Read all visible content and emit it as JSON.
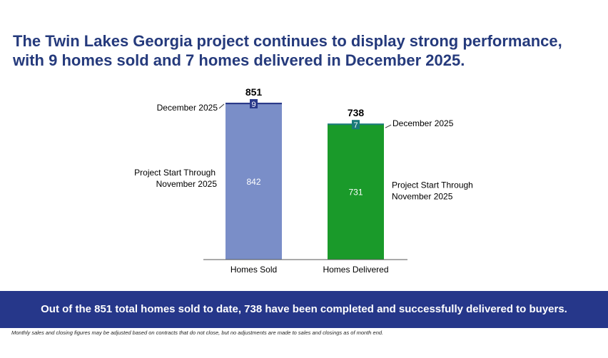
{
  "headline": {
    "line1": "The Twin Lakes Georgia project continues to display strong performance,",
    "line2": "with 9 homes sold and 7 homes delivered in December 2025."
  },
  "chart_data": {
    "type": "bar",
    "stacked": true,
    "categories": [
      "Homes Sold",
      "Homes Delivered"
    ],
    "totals": [
      851,
      738
    ],
    "series": [
      {
        "key": "base",
        "labels": [
          "Project Start Through November 2025",
          "Project Start Through November 2025"
        ],
        "values": [
          842,
          731
        ]
      },
      {
        "key": "month",
        "labels": [
          "December 2025",
          "December 2025"
        ],
        "values": [
          9,
          7
        ]
      }
    ],
    "colors": {
      "sold_base": "#7a8ec8",
      "sold_month": "#2b3a8a",
      "delivered_base": "#1a9a2a",
      "delivered_month": "#1a7a7a"
    },
    "ylim": [
      0,
      851
    ]
  },
  "banner": {
    "text": "Out of the 851 total homes sold to date, 738 have been completed and successfully delivered to buyers."
  },
  "footnote": "Monthly sales and closing figures may be adjusted based on contracts that do not close, but no adjustments are made to sales and closings as of month end."
}
